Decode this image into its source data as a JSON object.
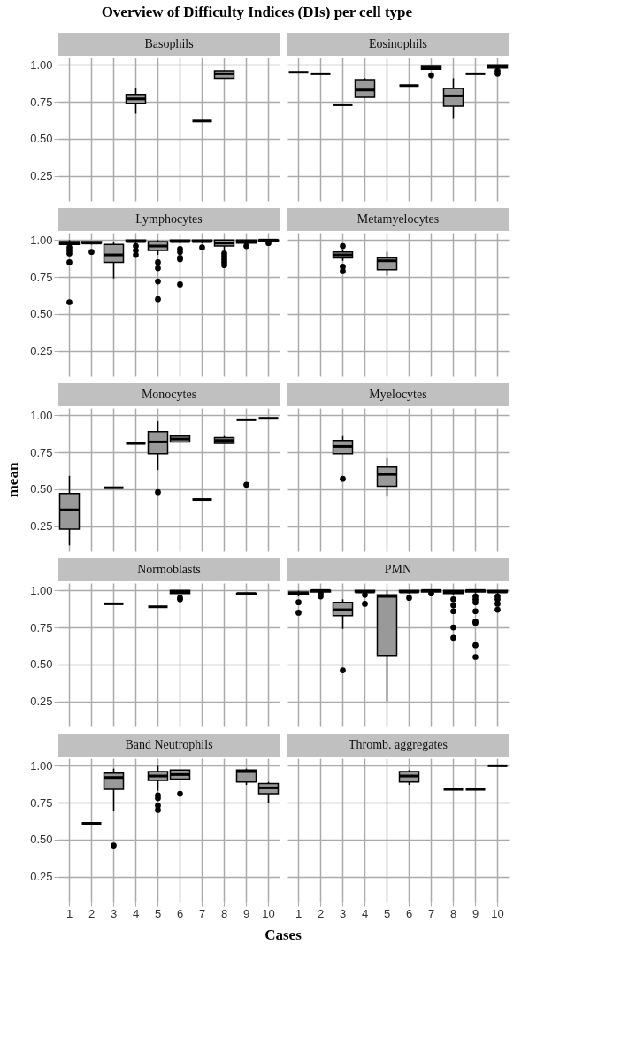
{
  "chart_data": [
    {
      "type": "box",
      "title": "Basophils",
      "annotations": [
        "Overview of Difficulty Indices (DIs) per cell type"
      ],
      "categories": [
        "1",
        "2",
        "3",
        "4",
        "5",
        "6",
        "7",
        "8",
        "9",
        "10"
      ],
      "ylim": [
        0.08,
        1.05
      ],
      "yticks": [
        {
          "value": 0.25,
          "label": "0.25"
        },
        {
          "value": 0.5,
          "label": "0.50"
        },
        {
          "value": 0.75,
          "label": "0.75"
        },
        {
          "value": 1.0,
          "label": "1.00"
        }
      ],
      "grid": true,
      "tick_labels": "y",
      "boxes": [
        null,
        null,
        null,
        {
          "low": 0.67,
          "q1": 0.74,
          "median": 0.77,
          "q3": 0.8,
          "high": 0.84
        },
        null,
        null,
        {
          "low": 0.62,
          "q1": 0.62,
          "median": 0.62,
          "q3": 0.62,
          "high": 0.62
        },
        {
          "low": 0.91,
          "q1": 0.91,
          "median": 0.94,
          "q3": 0.96,
          "high": 0.96
        },
        null,
        null
      ]
    },
    {
      "type": "box",
      "title": "Eosinophils",
      "categories": [
        "1",
        "2",
        "3",
        "4",
        "5",
        "6",
        "7",
        "8",
        "9",
        "10"
      ],
      "ylim": [
        0.08,
        1.05
      ],
      "yticks": [
        {
          "value": 0.25,
          "label": null
        },
        {
          "value": 0.5,
          "label": null
        },
        {
          "value": 0.75,
          "label": null
        },
        {
          "value": 1.0,
          "label": null
        }
      ],
      "grid": true,
      "tick_labels": false,
      "boxes": [
        {
          "low": 0.95,
          "q1": 0.95,
          "median": 0.95,
          "q3": 0.95,
          "high": 0.95
        },
        {
          "low": 0.94,
          "q1": 0.94,
          "median": 0.94,
          "q3": 0.94,
          "high": 0.94
        },
        {
          "low": 0.73,
          "q1": 0.73,
          "median": 0.73,
          "q3": 0.73,
          "high": 0.73
        },
        {
          "low": 0.78,
          "q1": 0.78,
          "median": 0.83,
          "q3": 0.9,
          "high": 0.91
        },
        null,
        {
          "low": 0.86,
          "q1": 0.86,
          "median": 0.86,
          "q3": 0.86,
          "high": 0.86
        },
        {
          "low": 0.97,
          "q1": 0.97,
          "median": 0.98,
          "q3": 0.99,
          "high": 0.99,
          "outliers": [
            0.93
          ]
        },
        {
          "low": 0.64,
          "q1": 0.72,
          "median": 0.79,
          "q3": 0.84,
          "high": 0.91
        },
        {
          "low": 0.94,
          "q1": 0.94,
          "median": 0.94,
          "q3": 0.94,
          "high": 0.94
        },
        {
          "low": 0.98,
          "q1": 0.98,
          "median": 0.99,
          "q3": 1.0,
          "high": 1.0,
          "outliers": [
            0.96,
            0.94
          ]
        }
      ]
    },
    {
      "type": "box",
      "title": "Lymphocytes",
      "categories": [
        "1",
        "2",
        "3",
        "4",
        "5",
        "6",
        "7",
        "8",
        "9",
        "10"
      ],
      "ylim": [
        0.08,
        1.05
      ],
      "yticks": [
        {
          "value": 0.25,
          "label": "0.25"
        },
        {
          "value": 0.5,
          "label": "0.50"
        },
        {
          "value": 0.75,
          "label": "0.75"
        },
        {
          "value": 1.0,
          "label": "1.00"
        }
      ],
      "grid": true,
      "tick_labels": "y",
      "boxes": [
        {
          "low": 0.96,
          "q1": 0.97,
          "median": 0.98,
          "q3": 0.99,
          "high": 1.0,
          "outliers": [
            0.95,
            0.93,
            0.91,
            0.85,
            0.58
          ]
        },
        {
          "low": 0.97,
          "q1": 0.98,
          "median": 0.98,
          "q3": 0.99,
          "high": 0.99,
          "outliers": [
            0.92
          ]
        },
        {
          "low": 0.74,
          "q1": 0.85,
          "median": 0.9,
          "q3": 0.97,
          "high": 0.99
        },
        {
          "low": 0.98,
          "q1": 0.99,
          "median": 0.99,
          "q3": 1.0,
          "high": 1.0,
          "outliers": [
            0.96,
            0.93,
            0.9
          ]
        },
        {
          "low": 0.9,
          "q1": 0.93,
          "median": 0.96,
          "q3": 0.99,
          "high": 1.0,
          "outliers": [
            0.85,
            0.81,
            0.72,
            0.6
          ]
        },
        {
          "low": 0.98,
          "q1": 0.99,
          "median": 0.99,
          "q3": 1.0,
          "high": 1.0,
          "outliers": [
            0.94,
            0.92,
            0.88,
            0.87,
            0.7
          ]
        },
        {
          "low": 0.98,
          "q1": 0.99,
          "median": 0.99,
          "q3": 1.0,
          "high": 1.0,
          "outliers": [
            0.95
          ]
        },
        {
          "low": 0.93,
          "q1": 0.96,
          "median": 0.98,
          "q3": 1.0,
          "high": 1.0,
          "outliers": [
            0.91,
            0.89,
            0.87,
            0.85,
            0.83
          ]
        },
        {
          "low": 0.98,
          "q1": 0.98,
          "median": 0.99,
          "q3": 1.0,
          "high": 1.0,
          "outliers": [
            0.96
          ]
        },
        {
          "low": 0.99,
          "q1": 0.99,
          "median": 1.0,
          "q3": 1.0,
          "high": 1.0,
          "outliers": [
            0.98
          ]
        }
      ]
    },
    {
      "type": "box",
      "title": "Metamyelocytes",
      "categories": [
        "1",
        "2",
        "3",
        "4",
        "5",
        "6",
        "7",
        "8",
        "9",
        "10"
      ],
      "ylim": [
        0.08,
        1.05
      ],
      "yticks": [
        {
          "value": 0.25,
          "label": null
        },
        {
          "value": 0.5,
          "label": null
        },
        {
          "value": 0.75,
          "label": null
        },
        {
          "value": 1.0,
          "label": null
        }
      ],
      "grid": true,
      "tick_labels": false,
      "boxes": [
        null,
        null,
        {
          "low": 0.86,
          "q1": 0.88,
          "median": 0.9,
          "q3": 0.92,
          "high": 0.93,
          "outliers": [
            0.96,
            0.82,
            0.79
          ]
        },
        null,
        {
          "low": 0.76,
          "q1": 0.8,
          "median": 0.86,
          "q3": 0.88,
          "high": 0.92
        },
        null,
        null,
        null,
        null,
        null
      ]
    },
    {
      "type": "box",
      "title": "Monocytes",
      "ylabel": "mean",
      "categories": [
        "1",
        "2",
        "3",
        "4",
        "5",
        "6",
        "7",
        "8",
        "9",
        "10"
      ],
      "ylim": [
        0.08,
        1.05
      ],
      "yticks": [
        {
          "value": 0.25,
          "label": "0.25"
        },
        {
          "value": 0.5,
          "label": "0.50"
        },
        {
          "value": 0.75,
          "label": "0.75"
        },
        {
          "value": 1.0,
          "label": "1.00"
        }
      ],
      "grid": true,
      "tick_labels": "y",
      "boxes": [
        {
          "low": 0.12,
          "q1": 0.23,
          "median": 0.36,
          "q3": 0.47,
          "high": 0.59
        },
        null,
        {
          "low": 0.51,
          "q1": 0.51,
          "median": 0.51,
          "q3": 0.51,
          "high": 0.51
        },
        {
          "low": 0.81,
          "q1": 0.81,
          "median": 0.81,
          "q3": 0.81,
          "high": 0.81
        },
        {
          "low": 0.63,
          "q1": 0.74,
          "median": 0.82,
          "q3": 0.89,
          "high": 0.96,
          "outliers": [
            0.48
          ]
        },
        {
          "low": 0.82,
          "q1": 0.82,
          "median": 0.84,
          "q3": 0.86,
          "high": 0.86
        },
        {
          "low": 0.43,
          "q1": 0.43,
          "median": 0.43,
          "q3": 0.43,
          "high": 0.43
        },
        {
          "low": 0.81,
          "q1": 0.81,
          "median": 0.83,
          "q3": 0.85,
          "high": 0.86
        },
        {
          "low": 0.97,
          "q1": 0.97,
          "median": 0.97,
          "q3": 0.97,
          "high": 0.97,
          "outliers": [
            0.53
          ]
        },
        {
          "low": 0.98,
          "q1": 0.98,
          "median": 0.98,
          "q3": 0.98,
          "high": 0.98
        }
      ]
    },
    {
      "type": "box",
      "title": "Myelocytes",
      "categories": [
        "1",
        "2",
        "3",
        "4",
        "5",
        "6",
        "7",
        "8",
        "9",
        "10"
      ],
      "ylim": [
        0.08,
        1.05
      ],
      "yticks": [
        {
          "value": 0.25,
          "label": null
        },
        {
          "value": 0.5,
          "label": null
        },
        {
          "value": 0.75,
          "label": null
        },
        {
          "value": 1.0,
          "label": null
        }
      ],
      "grid": true,
      "tick_labels": false,
      "boxes": [
        null,
        null,
        {
          "low": 0.74,
          "q1": 0.74,
          "median": 0.79,
          "q3": 0.83,
          "high": 0.86,
          "outliers": [
            0.57
          ]
        },
        null,
        {
          "low": 0.45,
          "q1": 0.52,
          "median": 0.6,
          "q3": 0.65,
          "high": 0.71
        },
        null,
        null,
        null,
        null,
        null
      ]
    },
    {
      "type": "box",
      "title": "Normoblasts",
      "categories": [
        "1",
        "2",
        "3",
        "4",
        "5",
        "6",
        "7",
        "8",
        "9",
        "10"
      ],
      "ylim": [
        0.08,
        1.05
      ],
      "yticks": [
        {
          "value": 0.25,
          "label": "0.25"
        },
        {
          "value": 0.5,
          "label": "0.50"
        },
        {
          "value": 0.75,
          "label": "0.75"
        },
        {
          "value": 1.0,
          "label": "1.00"
        }
      ],
      "grid": true,
      "tick_labels": "y",
      "boxes": [
        null,
        null,
        {
          "low": 0.91,
          "q1": 0.91,
          "median": 0.91,
          "q3": 0.91,
          "high": 0.91
        },
        null,
        {
          "low": 0.89,
          "q1": 0.89,
          "median": 0.89,
          "q3": 0.89,
          "high": 0.89
        },
        {
          "low": 0.98,
          "q1": 0.98,
          "median": 0.99,
          "q3": 1.0,
          "high": 1.0,
          "outliers": [
            0.95,
            0.94
          ]
        },
        null,
        null,
        {
          "low": 0.97,
          "q1": 0.97,
          "median": 0.98,
          "q3": 0.98,
          "high": 0.98
        },
        null
      ]
    },
    {
      "type": "box",
      "title": "PMN",
      "categories": [
        "1",
        "2",
        "3",
        "4",
        "5",
        "6",
        "7",
        "8",
        "9",
        "10"
      ],
      "ylim": [
        0.08,
        1.05
      ],
      "yticks": [
        {
          "value": 0.25,
          "label": null
        },
        {
          "value": 0.5,
          "label": null
        },
        {
          "value": 0.75,
          "label": null
        },
        {
          "value": 1.0,
          "label": null
        }
      ],
      "grid": true,
      "tick_labels": false,
      "boxes": [
        {
          "low": 0.96,
          "q1": 0.97,
          "median": 0.98,
          "q3": 0.99,
          "high": 1.0,
          "outliers": [
            0.92,
            0.85
          ]
        },
        {
          "low": 0.99,
          "q1": 0.99,
          "median": 1.0,
          "q3": 1.0,
          "high": 1.0,
          "outliers": [
            0.98,
            0.96
          ]
        },
        {
          "low": 0.74,
          "q1": 0.83,
          "median": 0.87,
          "q3": 0.92,
          "high": 0.94,
          "outliers": [
            0.46
          ]
        },
        {
          "low": 0.98,
          "q1": 0.99,
          "median": 0.99,
          "q3": 1.0,
          "high": 1.0,
          "outliers": [
            0.97,
            0.91
          ]
        },
        {
          "low": 0.25,
          "q1": 0.56,
          "median": 0.96,
          "q3": 0.97,
          "high": 1.0
        },
        {
          "low": 0.98,
          "q1": 0.99,
          "median": 0.99,
          "q3": 1.0,
          "high": 1.0,
          "outliers": [
            0.95
          ]
        },
        {
          "low": 0.99,
          "q1": 0.99,
          "median": 1.0,
          "q3": 1.0,
          "high": 1.0,
          "outliers": [
            0.98
          ]
        },
        {
          "low": 0.97,
          "q1": 0.98,
          "median": 0.99,
          "q3": 1.0,
          "high": 1.0,
          "outliers": [
            0.94,
            0.9,
            0.86,
            0.75,
            0.68
          ]
        },
        {
          "low": 0.98,
          "q1": 0.99,
          "median": 1.0,
          "q3": 1.0,
          "high": 1.0,
          "outliers": [
            0.96,
            0.94,
            0.92,
            0.86,
            0.79,
            0.78,
            0.63,
            0.55
          ]
        },
        {
          "low": 0.98,
          "q1": 0.99,
          "median": 0.99,
          "q3": 1.0,
          "high": 1.0,
          "outliers": [
            0.96,
            0.94,
            0.91,
            0.87
          ]
        }
      ]
    },
    {
      "type": "box",
      "title": "Band Neutrophils",
      "xlabel": "Cases",
      "categories": [
        "1",
        "2",
        "3",
        "4",
        "5",
        "6",
        "7",
        "8",
        "9",
        "10"
      ],
      "ylim": [
        0.08,
        1.05
      ],
      "yticks": [
        {
          "value": 0.25,
          "label": "0.25"
        },
        {
          "value": 0.5,
          "label": "0.50"
        },
        {
          "value": 0.75,
          "label": "0.75"
        },
        {
          "value": 1.0,
          "label": "1.00"
        }
      ],
      "grid": true,
      "boxes": [
        null,
        {
          "low": 0.61,
          "q1": 0.61,
          "median": 0.61,
          "q3": 0.61,
          "high": 0.61
        },
        {
          "low": 0.69,
          "q1": 0.84,
          "median": 0.92,
          "q3": 0.95,
          "high": 0.98,
          "outliers": [
            0.46
          ]
        },
        null,
        {
          "low": 0.83,
          "q1": 0.9,
          "median": 0.93,
          "q3": 0.96,
          "high": 1.0,
          "outliers": [
            0.8,
            0.78,
            0.73,
            0.7
          ]
        },
        {
          "low": 0.91,
          "q1": 0.91,
          "median": 0.94,
          "q3": 0.97,
          "high": 0.97,
          "outliers": [
            0.81
          ]
        },
        null,
        null,
        {
          "low": 0.87,
          "q1": 0.89,
          "median": 0.96,
          "q3": 0.97,
          "high": 0.98
        },
        {
          "low": 0.75,
          "q1": 0.81,
          "median": 0.85,
          "q3": 0.88,
          "high": 0.89
        }
      ]
    },
    {
      "type": "box",
      "title": "Thromb. aggregates",
      "categories": [
        "1",
        "2",
        "3",
        "4",
        "5",
        "6",
        "7",
        "8",
        "9",
        "10"
      ],
      "ylim": [
        0.08,
        1.05
      ],
      "yticks": [
        {
          "value": 0.25,
          "label": null
        },
        {
          "value": 0.5,
          "label": null
        },
        {
          "value": 0.75,
          "label": null
        },
        {
          "value": 1.0,
          "label": null
        }
      ],
      "grid": true,
      "tick_labels": "x",
      "boxes": [
        null,
        null,
        null,
        null,
        null,
        {
          "low": 0.87,
          "q1": 0.89,
          "median": 0.93,
          "q3": 0.96,
          "high": 0.97
        },
        null,
        {
          "low": 0.84,
          "q1": 0.84,
          "median": 0.84,
          "q3": 0.84,
          "high": 0.84
        },
        {
          "low": 0.84,
          "q1": 0.84,
          "median": 0.84,
          "q3": 0.84,
          "high": 0.84
        },
        {
          "low": 1.0,
          "q1": 1.0,
          "median": 1.0,
          "q3": 1.0,
          "high": 1.0
        }
      ]
    }
  ]
}
